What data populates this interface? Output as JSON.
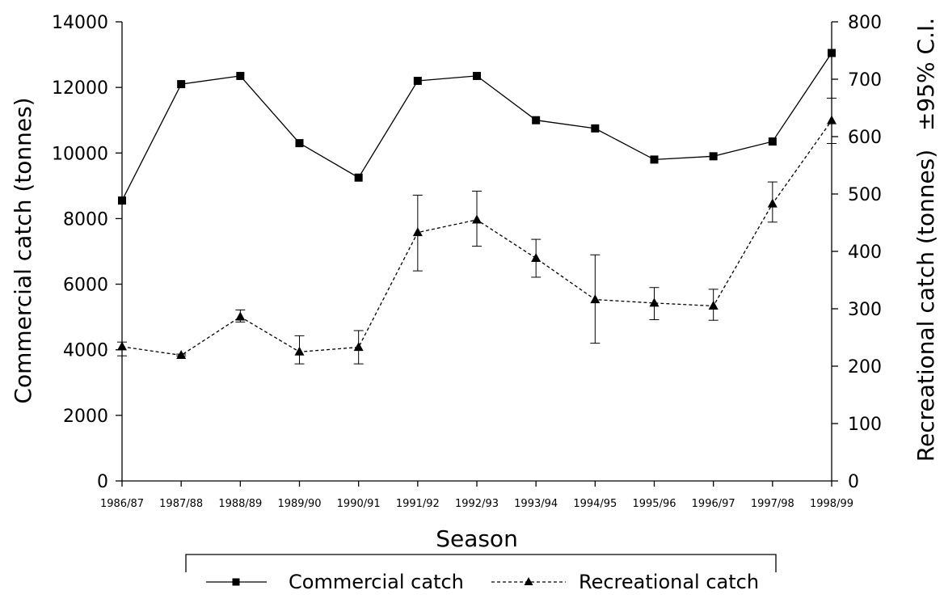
{
  "chart_data": {
    "type": "line",
    "xlabel": "Season",
    "ylabel_left": "Commercial catch (tonnes)",
    "ylabel_right": "Recreational catch (tonnes)",
    "ylabel_right_note": "±95% C.I.",
    "categories": [
      "1986/87",
      "1987/88",
      "1988/89",
      "1989/90",
      "1990/91",
      "1991/92",
      "1992/93",
      "1993/94",
      "1994/95",
      "1995/96",
      "1996/97",
      "1997/98",
      "1998/99"
    ],
    "ylim_left": [
      0,
      14000
    ],
    "yticks_left": [
      0,
      2000,
      4000,
      6000,
      8000,
      10000,
      12000,
      14000
    ],
    "ylim_right": [
      0,
      800
    ],
    "yticks_right": [
      0,
      100,
      200,
      300,
      400,
      500,
      600,
      700,
      800
    ],
    "grid": false,
    "legend_position": "bottom",
    "series": [
      {
        "name": "Commercial catch",
        "axis": "left",
        "marker": "square",
        "line_style": "solid",
        "color": "#000000",
        "values": [
          8550,
          12100,
          12350,
          10300,
          9250,
          12200,
          12350,
          11000,
          10750,
          9800,
          9900,
          10350,
          13050
        ]
      },
      {
        "name": "Recreational catch",
        "axis": "right",
        "marker": "triangle",
        "line_style": "dashed",
        "color": "#000000",
        "values": [
          234,
          219,
          286,
          225,
          233,
          433,
          455,
          388,
          316,
          310,
          305,
          483,
          628
        ],
        "ci_lower": [
          218,
          218,
          277,
          204,
          204,
          366,
          409,
          355,
          240,
          281,
          280,
          451,
          588
        ],
        "ci_upper": [
          242,
          221,
          298,
          253,
          262,
          498,
          505,
          421,
          394,
          337,
          334,
          521,
          667
        ]
      }
    ]
  }
}
